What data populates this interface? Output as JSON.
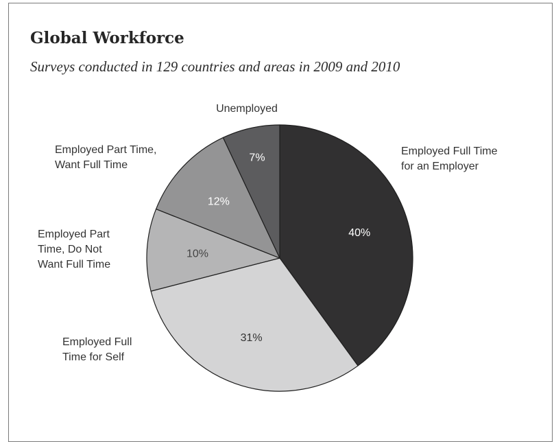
{
  "chart_data": {
    "type": "pie",
    "title": "Global Workforce",
    "subtitle": "Surveys conducted in 129 countries and areas in 2009 and 2010",
    "slices": [
      {
        "label": "Employed Full Time for an Employer",
        "label_lines": [
          "Employed Full Time",
          "for an Employer"
        ],
        "value": 40,
        "display": "40%",
        "color": "#313031",
        "text_color": "#ffffff"
      },
      {
        "label": "Employed Full Time for Self",
        "label_lines": [
          "Employed Full",
          "Time for Self"
        ],
        "value": 31,
        "display": "31%",
        "color": "#d4d4d5",
        "text_color": "#333333"
      },
      {
        "label": "Employed Part Time, Do Not Want Full Time",
        "label_lines": [
          "Employed Part",
          "Time, Do Not",
          "Want Full Time"
        ],
        "value": 10,
        "display": "10%",
        "color": "#b5b5b6",
        "text_color": "#444444"
      },
      {
        "label": "Employed Part Time, Want Full Time",
        "label_lines": [
          "Employed Part Time,",
          "Want Full Time"
        ],
        "value": 12,
        "display": "12%",
        "color": "#949495",
        "text_color": "#ffffff"
      },
      {
        "label": "Unemployed",
        "label_lines": [
          "Unemployed"
        ],
        "value": 7,
        "display": "7%",
        "color": "#5c5c5e",
        "text_color": "#ffffff"
      }
    ]
  }
}
